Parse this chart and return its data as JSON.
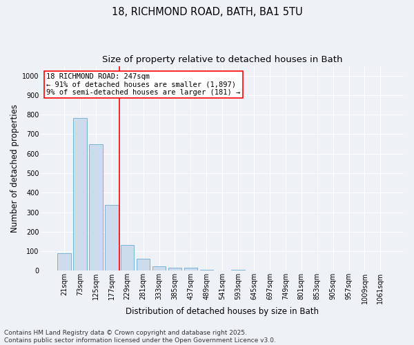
{
  "title_line1": "18, RICHMOND ROAD, BATH, BA1 5TU",
  "title_line2": "Size of property relative to detached houses in Bath",
  "xlabel": "Distribution of detached houses by size in Bath",
  "ylabel": "Number of detached properties",
  "bar_color": "#ccdcec",
  "bar_edge_color": "#6aaad4",
  "categories": [
    "21sqm",
    "73sqm",
    "125sqm",
    "177sqm",
    "229sqm",
    "281sqm",
    "333sqm",
    "385sqm",
    "437sqm",
    "489sqm",
    "541sqm",
    "593sqm",
    "645sqm",
    "697sqm",
    "749sqm",
    "801sqm",
    "853sqm",
    "905sqm",
    "957sqm",
    "1009sqm",
    "1061sqm"
  ],
  "values": [
    88,
    783,
    648,
    337,
    133,
    62,
    24,
    17,
    14,
    6,
    0,
    3,
    0,
    0,
    0,
    0,
    0,
    0,
    0,
    0,
    0
  ],
  "ylim": [
    0,
    1050
  ],
  "yticks": [
    0,
    100,
    200,
    300,
    400,
    500,
    600,
    700,
    800,
    900,
    1000
  ],
  "red_line_bin_index": 4,
  "annotation_line1": "18 RICHMOND ROAD: 247sqm",
  "annotation_line2": "← 91% of detached houses are smaller (1,897)",
  "annotation_line3": "9% of semi-detached houses are larger (181) →",
  "footer_line1": "Contains HM Land Registry data © Crown copyright and database right 2025.",
  "footer_line2": "Contains public sector information licensed under the Open Government Licence v3.0.",
  "background_color": "#eef2f7",
  "grid_color": "#ffffff",
  "title_fontsize": 10.5,
  "subtitle_fontsize": 9.5,
  "axis_label_fontsize": 8.5,
  "tick_fontsize": 7,
  "annotation_fontsize": 7.5,
  "footer_fontsize": 6.5
}
